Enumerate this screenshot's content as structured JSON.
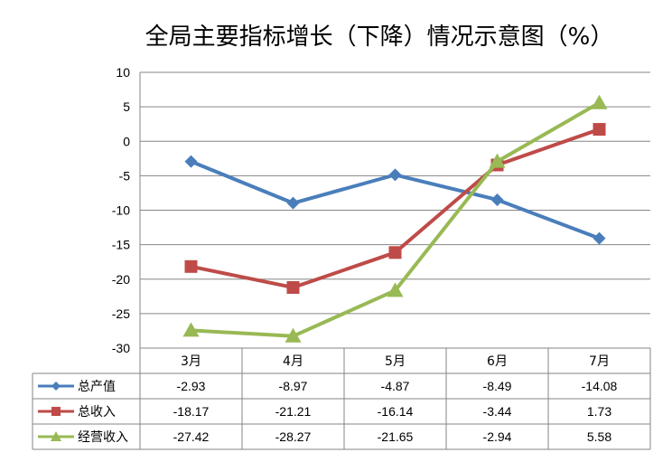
{
  "chart_data": {
    "type": "line",
    "title": "全局主要指标增长（下降）情况示意图（%）",
    "categories": [
      "3月",
      "4月",
      "5月",
      "6月",
      "7月"
    ],
    "ylim": [
      -30,
      10
    ],
    "yticks": [
      10,
      5,
      0,
      -5,
      -10,
      -15,
      -20,
      -25,
      -30
    ],
    "grid": true,
    "legend": "data-table",
    "series": [
      {
        "name": "总产值",
        "color": "#4a7ebb",
        "marker": "diamond",
        "values": [
          -2.93,
          -8.97,
          -4.87,
          -8.49,
          -14.08
        ],
        "labels": [
          "-2.93",
          "-8.97",
          "-4.87",
          "-8.49",
          "-14.08"
        ]
      },
      {
        "name": "总收入",
        "color": "#be4b48",
        "marker": "square",
        "values": [
          -18.17,
          -21.21,
          -16.14,
          -3.44,
          1.73
        ],
        "labels": [
          "-18.17",
          "-21.21",
          "-16.14",
          "-3.44",
          "1.73"
        ]
      },
      {
        "name": "经营收入",
        "color": "#98b954",
        "marker": "triangle",
        "values": [
          -27.42,
          -28.27,
          -21.65,
          -2.94,
          5.58
        ],
        "labels": [
          "-27.42",
          "-28.27",
          "-21.65",
          "-2.94",
          "5.58"
        ]
      }
    ]
  }
}
